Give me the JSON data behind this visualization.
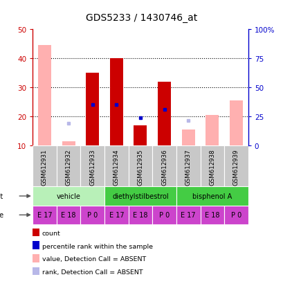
{
  "title": "GDS5233 / 1430746_at",
  "samples": [
    "GSM612931",
    "GSM612932",
    "GSM612933",
    "GSM612934",
    "GSM612935",
    "GSM612936",
    "GSM612937",
    "GSM612938",
    "GSM612939"
  ],
  "red_bars": [
    null,
    null,
    35,
    40,
    17,
    32,
    null,
    null,
    null
  ],
  "pink_bars": [
    44.5,
    11.5,
    null,
    null,
    null,
    null,
    15.5,
    20.5,
    25.5
  ],
  "blue_squares": [
    null,
    null,
    24,
    24,
    19.5,
    22.5,
    null,
    null,
    null
  ],
  "lavender_squares": [
    null,
    17.5,
    null,
    null,
    null,
    null,
    18.5,
    null,
    null
  ],
  "ylim_left": [
    10,
    50
  ],
  "ylim_right": [
    0,
    100
  ],
  "yticks_left": [
    10,
    20,
    30,
    40,
    50
  ],
  "yticks_right": [
    0,
    25,
    50,
    75,
    100
  ],
  "ytick_labels_left": [
    "10",
    "20",
    "30",
    "40",
    "50"
  ],
  "ytick_labels_right": [
    "0",
    "25",
    "50",
    "75",
    "100%"
  ],
  "left_axis_color": "#cc0000",
  "right_axis_color": "#0000cc",
  "bar_bottom": 10,
  "agent_configs": [
    {
      "start": 0,
      "end": 2,
      "label": "vehicle",
      "color": "#b8f0b8"
    },
    {
      "start": 3,
      "end": 5,
      "label": "diethylstilbestrol",
      "color": "#44cc44"
    },
    {
      "start": 6,
      "end": 8,
      "label": "bisphenol A",
      "color": "#44cc44"
    }
  ],
  "ages": [
    "E 17",
    "E 18",
    "P 0",
    "E 17",
    "E 18",
    "P 0",
    "E 17",
    "E 18",
    "P 0"
  ],
  "age_color": "#cc44cc",
  "legend_items": [
    {
      "label": "count",
      "color": "#cc0000"
    },
    {
      "label": "percentile rank within the sample",
      "color": "#0000cc"
    },
    {
      "label": "value, Detection Call = ABSENT",
      "color": "#ffb0b0"
    },
    {
      "label": "rank, Detection Call = ABSENT",
      "color": "#b8b8e8"
    }
  ],
  "bar_width": 0.55,
  "sample_bg": "#c8c8c8",
  "plot_bg": "#ffffff"
}
